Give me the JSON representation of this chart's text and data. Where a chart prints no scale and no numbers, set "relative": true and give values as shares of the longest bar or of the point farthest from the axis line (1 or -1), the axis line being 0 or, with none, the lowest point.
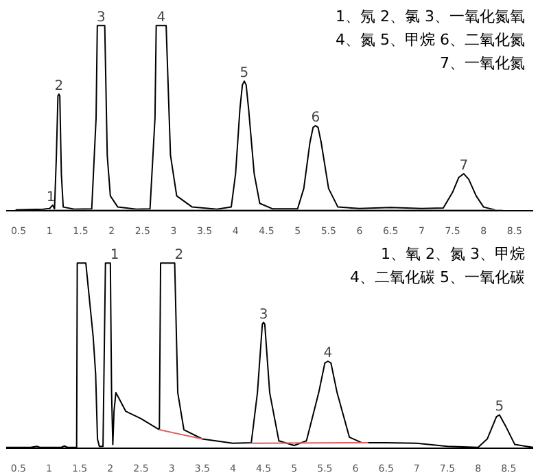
{
  "chart_data": [
    {
      "type": "line",
      "relative": true,
      "tick_labels": "x",
      "grid": false,
      "xlim": [
        0.3,
        8.8
      ],
      "xticks": [
        0.5,
        1,
        1.5,
        2,
        2.5,
        3,
        3.5,
        4,
        4.5,
        5,
        5.5,
        6,
        6.5,
        7,
        7.5,
        8,
        8.5
      ],
      "series": [
        {
          "color": "#e06060",
          "x": [
            1.0,
            8.3
          ],
          "values": [
            0.003,
            0.003
          ]
        },
        {
          "color": "#000000",
          "x": [
            0.46,
            0.9,
            1.0,
            1.05,
            1.08,
            1.11,
            1.135,
            1.15,
            1.165,
            1.19,
            1.22,
            1.4,
            1.68,
            1.75,
            1.77,
            1.89,
            1.93,
            1.98,
            2.1,
            2.4,
            2.62,
            2.7,
            2.72,
            2.88,
            2.95,
            3.05,
            3.3,
            3.7,
            3.93,
            4.0,
            4.07,
            4.11,
            4.14,
            4.17,
            4.21,
            4.3,
            4.39,
            4.6,
            5.0,
            5.1,
            5.2,
            5.25,
            5.29,
            5.33,
            5.38,
            5.5,
            5.65,
            6.0,
            6.5,
            7.0,
            7.35,
            7.5,
            7.6,
            7.68,
            7.76,
            7.88,
            8.0,
            8.18
          ],
          "values": [
            0.005,
            0.008,
            0.012,
            0.03,
            0.01,
            0.3,
            0.62,
            0.63,
            0.62,
            0.2,
            0.02,
            0.008,
            0.01,
            0.5,
            1,
            1,
            0.3,
            0.08,
            0.02,
            0.008,
            0.01,
            0.5,
            1,
            1,
            0.3,
            0.08,
            0.02,
            0.008,
            0.02,
            0.2,
            0.55,
            0.68,
            0.7,
            0.68,
            0.55,
            0.2,
            0.04,
            0.01,
            0.01,
            0.12,
            0.37,
            0.45,
            0.46,
            0.45,
            0.37,
            0.12,
            0.02,
            0.012,
            0.018,
            0.012,
            0.015,
            0.1,
            0.18,
            0.2,
            0.17,
            0.08,
            0.02,
            0.005
          ]
        }
      ],
      "annotations": [
        "1、氖 2、氯 3、一氧化氮氧",
        "4、氮 5、甲烷 6、二氧化氮",
        "7、一氧化氮",
        {
          "text": "1",
          "x": 1.02,
          "y": 0.03
        },
        {
          "text": "2",
          "x": 1.15,
          "y": 0.63
        },
        {
          "text": "3",
          "x": 1.83,
          "y": 1
        },
        {
          "text": "4",
          "x": 2.8,
          "y": 1
        },
        {
          "text": "5",
          "x": 4.14,
          "y": 0.7
        },
        {
          "text": "6",
          "x": 5.29,
          "y": 0.46
        },
        {
          "text": "7",
          "x": 7.68,
          "y": 0.2
        }
      ]
    },
    {
      "type": "line",
      "relative": true,
      "tick_labels": "x",
      "grid": false,
      "xlim": [
        0.3,
        8.9
      ],
      "xticks": [
        0.5,
        1,
        1.5,
        2,
        2.5,
        3,
        3.5,
        4,
        4.5,
        5,
        5.5,
        6,
        6.5,
        7,
        7.5,
        8,
        8.5
      ],
      "series": [
        {
          "color": "#e06060",
          "x": [
            2.8,
            3.5,
            3.6,
            4.3,
            6.2
          ],
          "values": [
            0.1,
            0.05,
            null,
            0.027,
            0.03
          ]
        },
        {
          "color": "#000000",
          "x": [
            0.3,
            0.7,
            0.8,
            0.85,
            1.2,
            1.25,
            1.3,
            1.45,
            1.46,
            1.6,
            1.72,
            1.76,
            1.79,
            1.82,
            1.88,
            1.92,
            2.0,
            2.02,
            2.04,
            2.06,
            2.09,
            2.14,
            2.25,
            2.5,
            2.8,
            2.82,
            3.05,
            3.1,
            3.2,
            3.5,
            4.0,
            4.3,
            4.4,
            4.48,
            4.5,
            4.52,
            4.6,
            4.75,
            5.0,
            5.2,
            5.4,
            5.5,
            5.55,
            5.6,
            5.7,
            5.9,
            6.1,
            6.5,
            7.0,
            7.5,
            8.0,
            8.15,
            8.3,
            8.35,
            8.45,
            8.6,
            8.9
          ],
          "values": [
            0.005,
            0.005,
            0.01,
            0.005,
            0.005,
            0.012,
            0.005,
            0.005,
            1,
            1,
            0.6,
            0.4,
            0.05,
            0.01,
            0.01,
            1,
            1,
            0.3,
            0.02,
            0.2,
            0.3,
            0.27,
            0.2,
            0.16,
            0.1,
            1,
            1,
            0.3,
            0.1,
            0.05,
            0.027,
            0.03,
            0.3,
            0.67,
            0.68,
            0.67,
            0.3,
            0.04,
            0.015,
            0.04,
            0.3,
            0.46,
            0.47,
            0.46,
            0.3,
            0.06,
            0.03,
            0.03,
            0.027,
            0.01,
            0.005,
            0.05,
            0.17,
            0.18,
            0.12,
            0.02,
            0.005
          ]
        }
      ],
      "annotations": [
        "1、氧 2、氮 3、甲烷",
        "4、二氧化碳 5、一氧化碳",
        {
          "text": "1",
          "x": 2.07,
          "y": 1
        },
        {
          "text": "2",
          "x": 3.12,
          "y": 1
        },
        {
          "text": "3",
          "x": 4.5,
          "y": 0.68
        },
        {
          "text": "4",
          "x": 5.55,
          "y": 0.47
        },
        {
          "text": "5",
          "x": 8.35,
          "y": 0.18
        }
      ]
    }
  ]
}
